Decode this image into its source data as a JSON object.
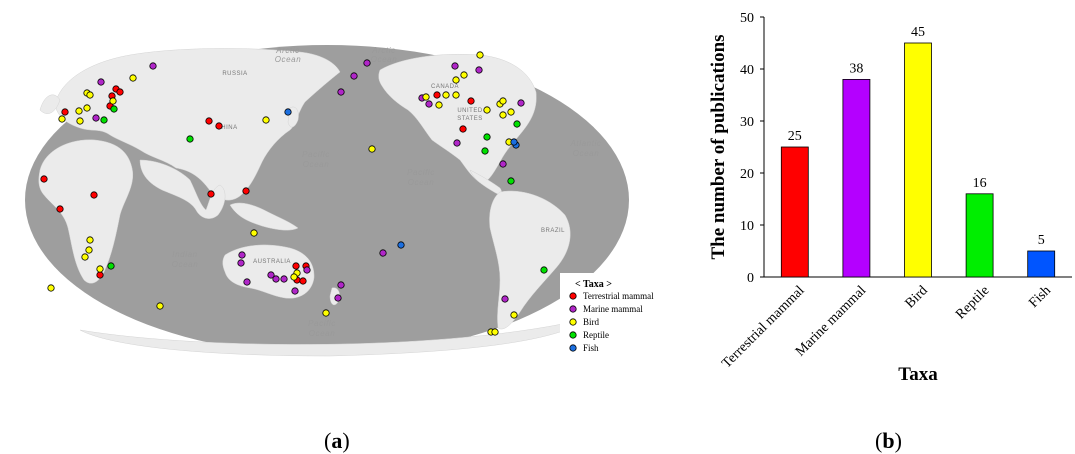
{
  "panel_a": {
    "caption_label": "a",
    "ocean_labels": {
      "arctic_left": [
        "Arctic",
        "Ocean"
      ],
      "arctic_right": [
        "Arctic",
        "Ocean"
      ],
      "pacific_center": [
        "Pacific",
        "Ocean"
      ],
      "pacific_right": [
        "Pacific",
        "Ocean"
      ],
      "atlantic": [
        "Atlantic",
        "Ocean"
      ],
      "indian": [
        "Indian",
        "Ocean"
      ],
      "pacific_south": [
        "Pacific",
        "Ocean"
      ]
    },
    "country_labels": {
      "russia": "RUSSIA",
      "china": "CHINA",
      "canada": "CANADA",
      "united_states": [
        "UNITED",
        "STATES"
      ],
      "australia": "AUSTRALIA",
      "brazil": "BRAZIL"
    },
    "legend": {
      "title": "< Taxa >",
      "items": [
        {
          "label": "Terrestrial mammal",
          "color": "#ff0000"
        },
        {
          "label": "Marine mammal",
          "color": "#b026c8"
        },
        {
          "label": "Bird",
          "color": "#ffff00"
        },
        {
          "label": "Reptile",
          "color": "#00e000"
        },
        {
          "label": "Fish",
          "color": "#1b6fe0"
        }
      ]
    }
  },
  "panel_b": {
    "caption_label": "b"
  },
  "chart_data": {
    "type": "bar",
    "categories": [
      "Terrestrial mammal",
      "Marine mammal",
      "Bird",
      "Reptile",
      "Fish"
    ],
    "values": [
      25,
      38,
      45,
      16,
      5
    ],
    "colors": [
      "#ff0000",
      "#b400ff",
      "#ffff00",
      "#00ee00",
      "#0055ff"
    ],
    "title": "",
    "xlabel": "Taxa",
    "ylabel": "The number of publications",
    "ylim": [
      0,
      50
    ],
    "yticks": [
      0,
      10,
      20,
      30,
      40,
      50
    ],
    "data_labels": true,
    "grid": false
  }
}
